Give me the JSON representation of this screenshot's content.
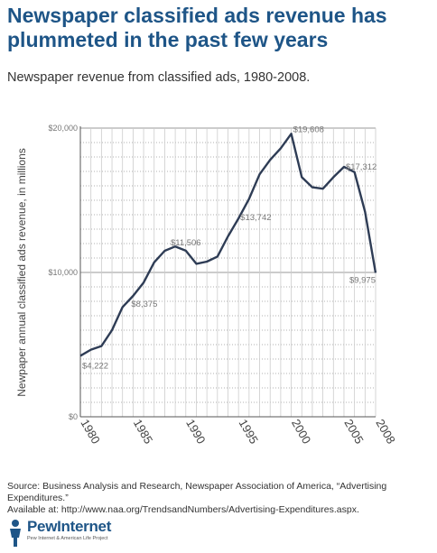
{
  "header": {
    "title": "Newspaper classified ads revenue has plummeted in the past few years",
    "subtitle": "Newspaper revenue from classified ads, 1980-2008."
  },
  "source": {
    "line1": "Source: Business Analysis and Research, Newspaper Association of America, “Advertising Expenditures.”",
    "line2": "Available at: http://www.naa.org/TrendsandNumbers/Advertising-Expenditures.aspx."
  },
  "logo": {
    "name": "PewInternet",
    "tagline": "Pew Internet & American Life Project",
    "icon": "pew-person-icon"
  },
  "colors": {
    "title": "#1e5587",
    "line": "#2e3c55",
    "grid": "#999999",
    "label": "#777777"
  },
  "chart_data": {
    "type": "line",
    "title": "",
    "ylabel": "Newpaper annual classified ads revenue, in millions",
    "xlabel": "",
    "xlim": [
      1980,
      2008
    ],
    "ylim": [
      0,
      20000
    ],
    "grid": true,
    "x_ticks": [
      "1980",
      "1985",
      "1990",
      "1995",
      "2000",
      "2005",
      "2008"
    ],
    "x_tick_values": [
      1980,
      1985,
      1990,
      1995,
      2000,
      2005,
      2008
    ],
    "y_ticks": [
      {
        "value": 0,
        "label": "$0"
      },
      {
        "value": 10000,
        "label": "$10,000"
      },
      {
        "value": 20000,
        "label": "$20,000"
      }
    ],
    "series": [
      {
        "x": [
          1980,
          1981,
          1982,
          1983,
          1984,
          1985,
          1986,
          1987,
          1988,
          1989,
          1990,
          1991,
          1992,
          1993,
          1994,
          1995,
          1996,
          1997,
          1998,
          1999,
          2000,
          2001,
          2002,
          2003,
          2004,
          2005,
          2006,
          2007,
          2008
        ],
        "values": [
          4222,
          4650,
          4900,
          6000,
          7600,
          8375,
          9300,
          10700,
          11500,
          11800,
          11506,
          10600,
          10750,
          11100,
          12500,
          13742,
          15100,
          16800,
          17800,
          18600,
          19608,
          16600,
          15900,
          15800,
          16600,
          17312,
          16950,
          14200,
          9975
        ]
      }
    ],
    "annotations": [
      {
        "x": 1980,
        "y": 4222,
        "label": "$4,222"
      },
      {
        "x": 1985,
        "y": 8375,
        "label": "$8,375"
      },
      {
        "x": 1990,
        "y": 11506,
        "label": "$11,506"
      },
      {
        "x": 1995,
        "y": 13742,
        "label": "$13,742"
      },
      {
        "x": 2000,
        "y": 19608,
        "label": "$19,608"
      },
      {
        "x": 2005,
        "y": 17312,
        "label": "$17,312"
      },
      {
        "x": 2008,
        "y": 9975,
        "label": "$9,975"
      }
    ]
  }
}
